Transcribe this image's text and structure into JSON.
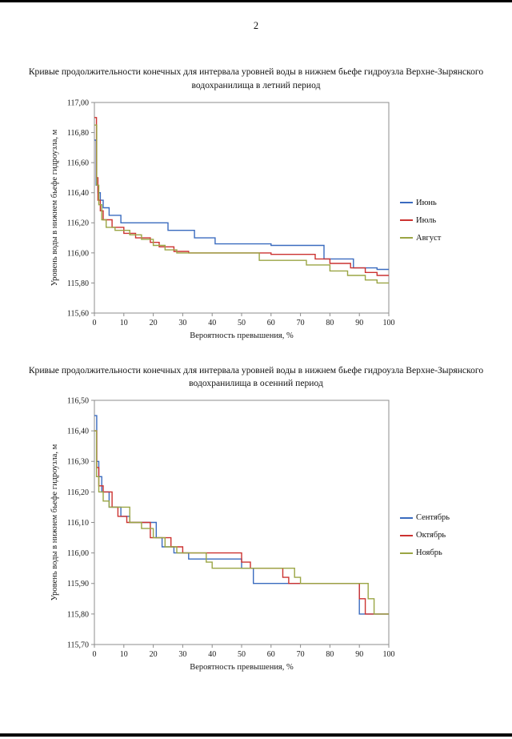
{
  "page": {
    "number": "2"
  },
  "chart_data": [
    {
      "type": "line",
      "title": "Кривые продолжительности конечных для интервала уровней воды в нижнем бьефе гидроузла Верхне-Зырянского водохранилища в летний период",
      "xlabel": "Вероятность превышения, %",
      "ylabel": "Уровень воды в нижнем бьефе гидроузла, м",
      "xlim": [
        0,
        100
      ],
      "ylim": [
        115.6,
        117.0
      ],
      "ytick": 0.2,
      "xticks": [
        0,
        10,
        20,
        30,
        40,
        50,
        60,
        70,
        80,
        90,
        100
      ],
      "grid": false,
      "legend_position": "right",
      "series": [
        {
          "name": "Июнь",
          "color": "#3a6bbf",
          "points": [
            [
              0,
              116.75
            ],
            [
              0.6,
              116.75
            ],
            [
              0.6,
              116.45
            ],
            [
              1.2,
              116.45
            ],
            [
              1.2,
              116.4
            ],
            [
              2,
              116.4
            ],
            [
              2,
              116.35
            ],
            [
              3,
              116.35
            ],
            [
              3,
              116.3
            ],
            [
              5,
              116.3
            ],
            [
              5,
              116.25
            ],
            [
              9,
              116.25
            ],
            [
              9,
              116.2
            ],
            [
              25,
              116.2
            ],
            [
              25,
              116.15
            ],
            [
              34,
              116.15
            ],
            [
              34,
              116.1
            ],
            [
              41,
              116.1
            ],
            [
              41,
              116.06
            ],
            [
              60,
              116.06
            ],
            [
              60,
              116.05
            ],
            [
              78,
              116.05
            ],
            [
              78,
              115.96
            ],
            [
              88,
              115.96
            ],
            [
              88,
              115.9
            ],
            [
              96,
              115.9
            ],
            [
              96,
              115.89
            ],
            [
              100,
              115.89
            ]
          ]
        },
        {
          "name": "Июль",
          "color": "#cc3230",
          "points": [
            [
              0,
              116.9
            ],
            [
              0.7,
              116.9
            ],
            [
              0.7,
              116.5
            ],
            [
              1.2,
              116.5
            ],
            [
              1.2,
              116.35
            ],
            [
              2,
              116.35
            ],
            [
              2,
              116.28
            ],
            [
              3,
              116.28
            ],
            [
              3,
              116.22
            ],
            [
              6,
              116.22
            ],
            [
              6,
              116.17
            ],
            [
              10,
              116.17
            ],
            [
              10,
              116.13
            ],
            [
              14,
              116.13
            ],
            [
              14,
              116.1
            ],
            [
              19,
              116.1
            ],
            [
              19,
              116.07
            ],
            [
              22,
              116.07
            ],
            [
              22,
              116.04
            ],
            [
              27,
              116.04
            ],
            [
              27,
              116.01
            ],
            [
              32,
              116.01
            ],
            [
              32,
              116.0
            ],
            [
              60,
              116.0
            ],
            [
              60,
              115.99
            ],
            [
              75,
              115.99
            ],
            [
              75,
              115.96
            ],
            [
              80,
              115.96
            ],
            [
              80,
              115.93
            ],
            [
              87,
              115.93
            ],
            [
              87,
              115.9
            ],
            [
              92,
              115.9
            ],
            [
              92,
              115.87
            ],
            [
              96,
              115.87
            ],
            [
              96,
              115.85
            ],
            [
              100,
              115.85
            ]
          ]
        },
        {
          "name": "Август",
          "color": "#9aa544",
          "points": [
            [
              0,
              116.85
            ],
            [
              0.8,
              116.85
            ],
            [
              0.8,
              116.45
            ],
            [
              1.5,
              116.45
            ],
            [
              1.5,
              116.32
            ],
            [
              2.5,
              116.32
            ],
            [
              2.5,
              116.22
            ],
            [
              4,
              116.22
            ],
            [
              4,
              116.17
            ],
            [
              7,
              116.17
            ],
            [
              7,
              116.15
            ],
            [
              12,
              116.15
            ],
            [
              12,
              116.12
            ],
            [
              16,
              116.12
            ],
            [
              16,
              116.09
            ],
            [
              20,
              116.09
            ],
            [
              20,
              116.05
            ],
            [
              24,
              116.05
            ],
            [
              24,
              116.02
            ],
            [
              28,
              116.02
            ],
            [
              28,
              116.0
            ],
            [
              56,
              116.0
            ],
            [
              56,
              115.95
            ],
            [
              72,
              115.95
            ],
            [
              72,
              115.92
            ],
            [
              80,
              115.92
            ],
            [
              80,
              115.88
            ],
            [
              86,
              115.88
            ],
            [
              86,
              115.85
            ],
            [
              92,
              115.85
            ],
            [
              92,
              115.82
            ],
            [
              96,
              115.82
            ],
            [
              96,
              115.8
            ],
            [
              100,
              115.8
            ]
          ]
        }
      ]
    },
    {
      "type": "line",
      "title": "Кривые продолжительности конечных для интервала уровней воды в нижнем бьефе гидроузла Верхне-Зырянского водохранилища в осенний период",
      "xlabel": "Вероятность превышения, %",
      "ylabel": "Уровень воды в нижнем бьефе гидроузла, м",
      "xlim": [
        0,
        100
      ],
      "ylim": [
        115.7,
        116.5
      ],
      "ytick": 0.1,
      "xticks": [
        0,
        10,
        20,
        30,
        40,
        50,
        60,
        70,
        80,
        90,
        100
      ],
      "grid": false,
      "legend_position": "right",
      "series": [
        {
          "name": "Сентябрь",
          "color": "#3a6bbf",
          "points": [
            [
              0,
              116.45
            ],
            [
              0.8,
              116.45
            ],
            [
              0.8,
              116.3
            ],
            [
              1.5,
              116.3
            ],
            [
              1.5,
              116.25
            ],
            [
              2.5,
              116.25
            ],
            [
              2.5,
              116.2
            ],
            [
              5,
              116.2
            ],
            [
              5,
              116.15
            ],
            [
              9,
              116.15
            ],
            [
              9,
              116.12
            ],
            [
              12,
              116.12
            ],
            [
              12,
              116.1
            ],
            [
              21,
              116.1
            ],
            [
              21,
              116.05
            ],
            [
              23,
              116.05
            ],
            [
              23,
              116.02
            ],
            [
              27,
              116.02
            ],
            [
              27,
              116.0
            ],
            [
              32,
              116.0
            ],
            [
              32,
              115.98
            ],
            [
              50,
              115.98
            ],
            [
              50,
              115.95
            ],
            [
              54,
              115.95
            ],
            [
              54,
              115.9
            ],
            [
              90,
              115.9
            ],
            [
              90,
              115.8
            ],
            [
              100,
              115.8
            ]
          ]
        },
        {
          "name": "Октябрь",
          "color": "#cc3230",
          "points": [
            [
              0,
              116.4
            ],
            [
              0.8,
              116.4
            ],
            [
              0.8,
              116.28
            ],
            [
              1.5,
              116.28
            ],
            [
              1.5,
              116.22
            ],
            [
              3,
              116.22
            ],
            [
              3,
              116.2
            ],
            [
              6,
              116.2
            ],
            [
              6,
              116.15
            ],
            [
              8,
              116.15
            ],
            [
              8,
              116.12
            ],
            [
              11,
              116.12
            ],
            [
              11,
              116.1
            ],
            [
              19,
              116.1
            ],
            [
              19,
              116.05
            ],
            [
              26,
              116.05
            ],
            [
              26,
              116.02
            ],
            [
              30,
              116.02
            ],
            [
              30,
              116.0
            ],
            [
              50,
              116.0
            ],
            [
              50,
              115.97
            ],
            [
              53,
              115.97
            ],
            [
              53,
              115.95
            ],
            [
              64,
              115.95
            ],
            [
              64,
              115.92
            ],
            [
              66,
              115.92
            ],
            [
              66,
              115.9
            ],
            [
              90,
              115.9
            ],
            [
              90,
              115.85
            ],
            [
              92,
              115.85
            ],
            [
              92,
              115.8
            ],
            [
              100,
              115.8
            ]
          ]
        },
        {
          "name": "Ноябрь",
          "color": "#9aa544",
          "points": [
            [
              0,
              116.4
            ],
            [
              0.7,
              116.4
            ],
            [
              0.7,
              116.25
            ],
            [
              1.5,
              116.25
            ],
            [
              1.5,
              116.2
            ],
            [
              3,
              116.2
            ],
            [
              3,
              116.17
            ],
            [
              5,
              116.17
            ],
            [
              5,
              116.15
            ],
            [
              12,
              116.15
            ],
            [
              12,
              116.1
            ],
            [
              16,
              116.1
            ],
            [
              16,
              116.08
            ],
            [
              20,
              116.08
            ],
            [
              20,
              116.05
            ],
            [
              24,
              116.05
            ],
            [
              24,
              116.02
            ],
            [
              28,
              116.02
            ],
            [
              28,
              116.0
            ],
            [
              38,
              116.0
            ],
            [
              38,
              115.97
            ],
            [
              40,
              115.97
            ],
            [
              40,
              115.95
            ],
            [
              68,
              115.95
            ],
            [
              68,
              115.92
            ],
            [
              70,
              115.92
            ],
            [
              70,
              115.9
            ],
            [
              93,
              115.9
            ],
            [
              93,
              115.85
            ],
            [
              95,
              115.85
            ],
            [
              95,
              115.8
            ],
            [
              100,
              115.8
            ]
          ]
        }
      ]
    }
  ]
}
